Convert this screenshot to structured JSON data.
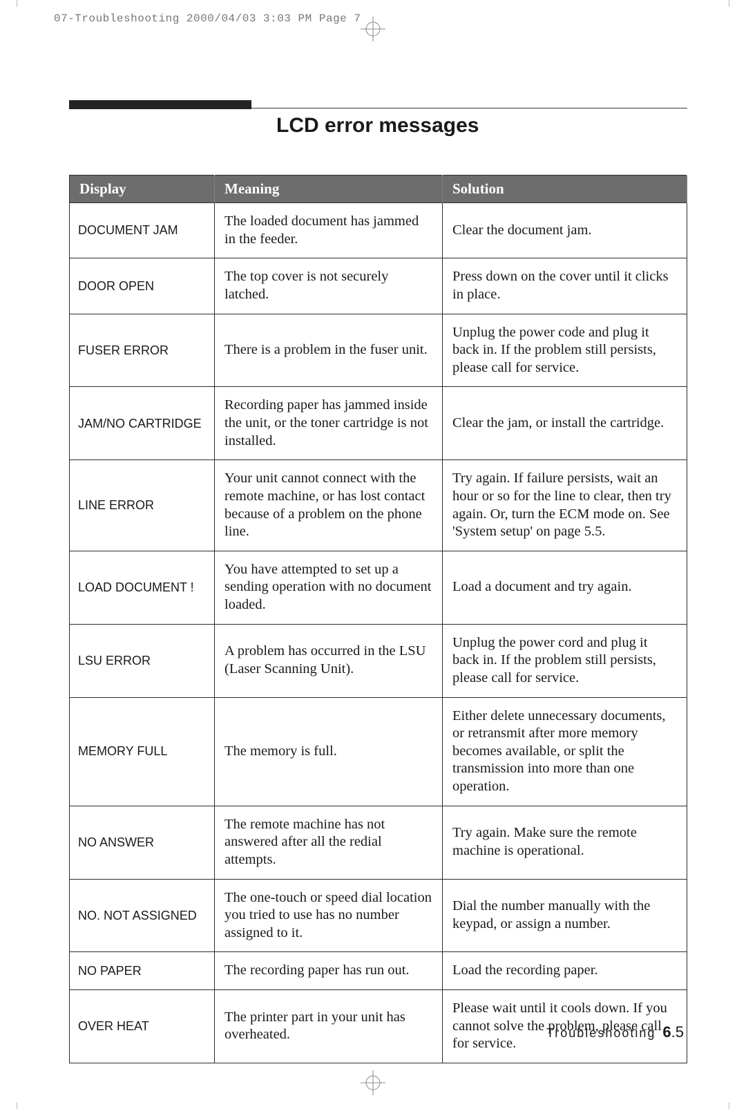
{
  "header": {
    "text": "07-Troubleshooting  2000/04/03 3:03 PM  Page 7"
  },
  "title": "LCD error messages",
  "table": {
    "columns": [
      "Display",
      "Meaning",
      "Solution"
    ],
    "rows": [
      {
        "display": "DOCUMENT JAM",
        "meaning": "The loaded document has jammed in the feeder.",
        "solution": "Clear the document jam."
      },
      {
        "display": "DOOR OPEN",
        "meaning": "The top cover is not securely latched.",
        "solution": "Press down on the cover until it clicks in place."
      },
      {
        "display": "FUSER ERROR",
        "meaning": "There is a problem in the fuser unit.",
        "solution": "Unplug the power code and plug it back in. If the problem still persists, please call for service."
      },
      {
        "display": "JAM/NO CARTRIDGE",
        "meaning": "Recording paper has jammed inside the unit, or the toner cartridge is not installed.",
        "solution": "Clear the jam, or install the cartridge."
      },
      {
        "display": "LINE ERROR",
        "meaning": "Your unit cannot connect with the remote machine, or has lost contact because of a problem on the phone line.",
        "solution": "Try again. If failure persists, wait an hour or so for the line to clear, then try again.\nOr, turn the ECM mode on. See 'System setup' on page 5.5."
      },
      {
        "display": "LOAD DOCUMENT !",
        "meaning": "You have attempted to set up a sending operation with no document loaded.",
        "solution": "Load a document and try again."
      },
      {
        "display": "LSU ERROR",
        "meaning": "A problem has occurred in the LSU (Laser Scanning Unit).",
        "solution": "Unplug the power cord and plug it back in. If the problem still persists, please call for service."
      },
      {
        "display": "MEMORY FULL",
        "meaning": "The memory is full.",
        "solution": "Either delete unnecessary documents, or retransmit after more memory becomes available, or split the transmission into more than one operation."
      },
      {
        "display": "NO ANSWER",
        "meaning": "The remote machine has not answered after all the redial attempts.",
        "solution": "Try again. Make sure the remote machine is operational."
      },
      {
        "display": "NO. NOT ASSIGNED",
        "meaning": "The one-touch or speed dial location you tried to use has no number assigned to it.",
        "solution": "Dial the number manually with the keypad, or assign a number."
      },
      {
        "display": "NO PAPER",
        "meaning": "The recording paper has run out.",
        "solution": "Load the recording paper."
      },
      {
        "display": "OVER HEAT",
        "meaning": "The printer part in your unit has overheated.",
        "solution": "Please wait until it cools down. If you cannot solve the problem, please call for service."
      }
    ]
  },
  "footer": {
    "section": "Troubleshooting",
    "chapter": "6",
    "page": "5"
  },
  "colors": {
    "header_bg": "#6d6d6d",
    "header_fg": "#ffffff",
    "border": "#2b2b2b",
    "text": "#1a1a1a",
    "meta_text": "#777777"
  }
}
